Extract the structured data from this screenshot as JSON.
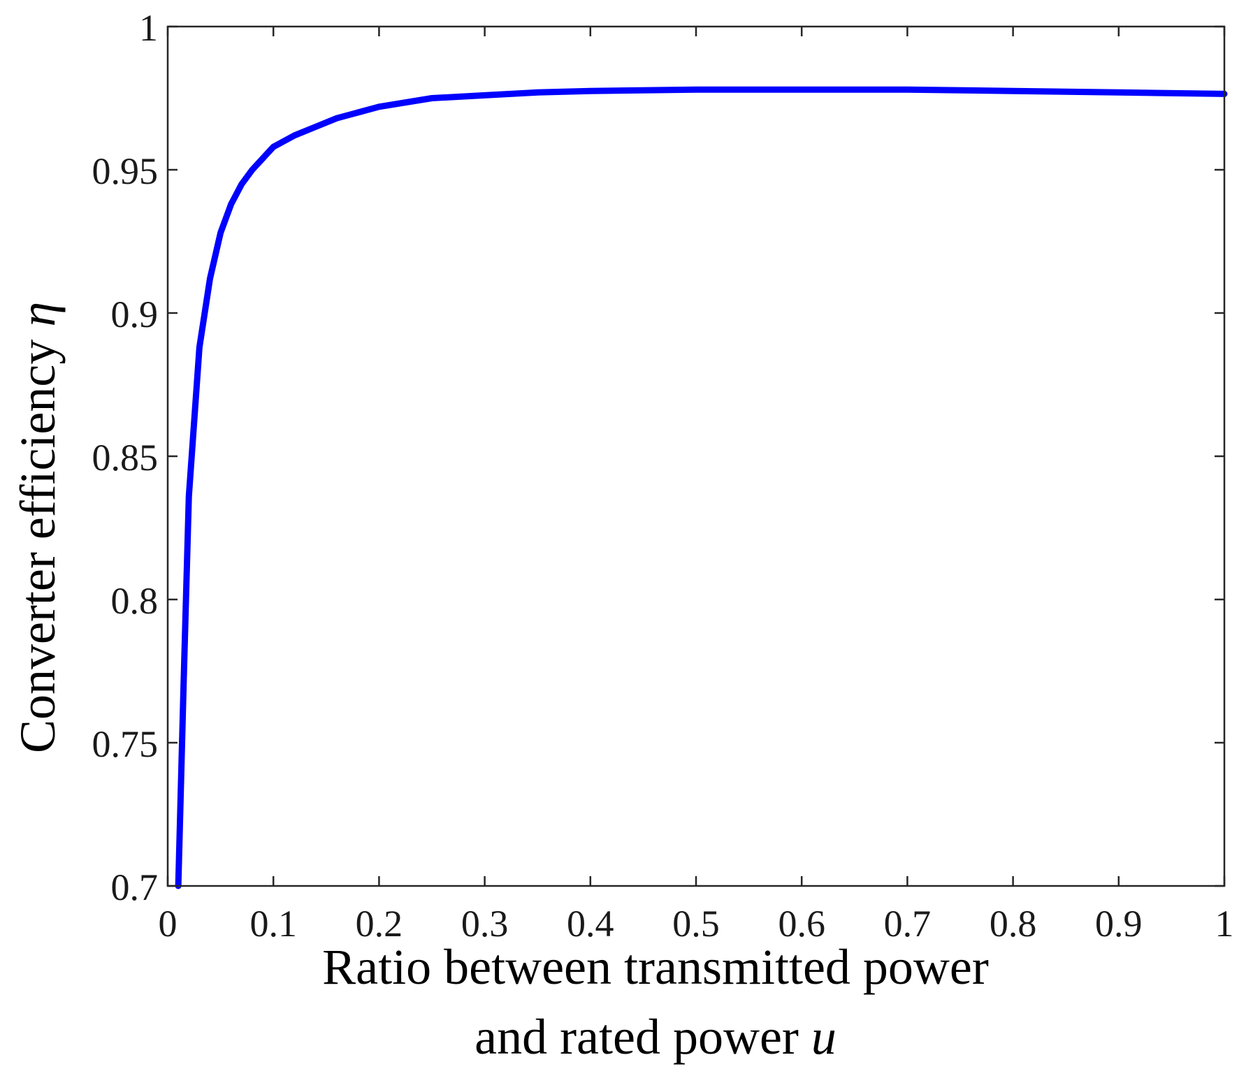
{
  "chart_data": {
    "type": "line",
    "xlabel_line1": "Ratio between transmitted power",
    "xlabel_line2_text": "and rated power ",
    "xlabel_symbol": "u",
    "ylabel_text": "Converter efficiency ",
    "ylabel_symbol": "η",
    "xlim": [
      0,
      1
    ],
    "ylim": [
      0.7,
      1
    ],
    "xticks": [
      0,
      0.1,
      0.2,
      0.3,
      0.4,
      0.5,
      0.6,
      0.7,
      0.8,
      0.9,
      1
    ],
    "xtick_labels": [
      "0",
      "0.1",
      "0.2",
      "0.3",
      "0.4",
      "0.5",
      "0.6",
      "0.7",
      "0.8",
      "0.9",
      "1"
    ],
    "yticks": [
      0.7,
      0.75,
      0.8,
      0.85,
      0.9,
      0.95,
      1
    ],
    "ytick_labels": [
      "0.7",
      "0.75",
      "0.8",
      "0.85",
      "0.9",
      "0.95",
      "1"
    ],
    "grid": false,
    "series": [
      {
        "color": "#0000ff",
        "x": [
          0.01,
          0.015,
          0.02,
          0.03,
          0.04,
          0.05,
          0.06,
          0.07,
          0.08,
          0.1,
          0.12,
          0.14,
          0.16,
          0.18,
          0.2,
          0.25,
          0.3,
          0.35,
          0.4,
          0.5,
          0.6,
          0.7,
          0.8,
          0.9,
          1.0
        ],
        "y": [
          0.7,
          0.77,
          0.836,
          0.888,
          0.912,
          0.928,
          0.938,
          0.945,
          0.95,
          0.958,
          0.962,
          0.965,
          0.968,
          0.97,
          0.972,
          0.975,
          0.976,
          0.977,
          0.9775,
          0.978,
          0.978,
          0.978,
          0.9775,
          0.977,
          0.9765
        ]
      }
    ]
  }
}
